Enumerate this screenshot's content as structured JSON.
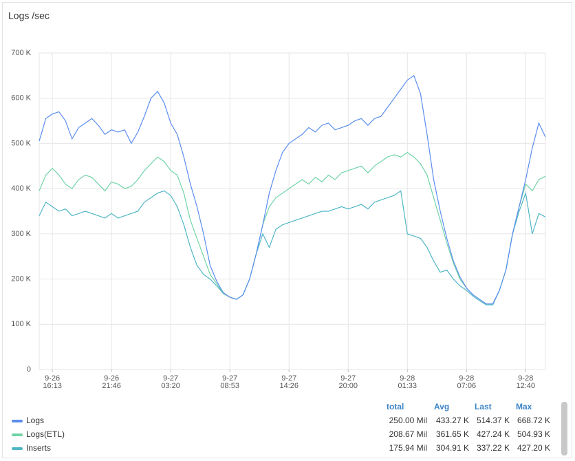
{
  "chart_data": {
    "type": "line",
    "title": "Logs /sec",
    "x": [
      "9-26 14:59",
      "9-26 15:36",
      "9-26 16:13",
      "9-26 16:50",
      "9-26 17:27",
      "9-26 18:04",
      "9-26 18:41",
      "9-26 19:18",
      "9-26 19:55",
      "9-26 20:32",
      "9-26 21:09",
      "9-26 21:46",
      "9-26 22:23",
      "9-26 23:00",
      "9-26 23:37",
      "9-27 00:14",
      "9-27 00:51",
      "9-27 01:28",
      "9-27 02:05",
      "9-27 02:42",
      "9-27 03:20",
      "9-27 03:57",
      "9-27 04:34",
      "9-27 05:11",
      "9-27 05:48",
      "9-27 06:25",
      "9-27 07:02",
      "9-27 07:39",
      "9-27 08:16",
      "9-27 08:53",
      "9-27 09:30",
      "9-27 10:07",
      "9-27 10:44",
      "9-27 11:21",
      "9-27 11:58",
      "9-27 12:35",
      "9-27 13:12",
      "9-27 13:49",
      "9-27 14:26",
      "9-27 15:03",
      "9-27 15:40",
      "9-27 16:17",
      "9-27 16:54",
      "9-27 17:31",
      "9-27 18:08",
      "9-27 18:45",
      "9-27 19:22",
      "9-27 20:00",
      "9-27 20:37",
      "9-27 21:14",
      "9-27 21:51",
      "9-27 22:28",
      "9-27 23:05",
      "9-27 23:42",
      "9-28 00:19",
      "9-28 00:56",
      "9-28 01:33",
      "9-28 02:10",
      "9-28 02:47",
      "9-28 03:24",
      "9-28 04:01",
      "9-28 04:38",
      "9-28 05:15",
      "9-28 05:52",
      "9-28 06:29",
      "9-28 07:06",
      "9-28 07:43",
      "9-28 08:20",
      "9-28 08:57",
      "9-28 09:34",
      "9-28 10:11",
      "9-28 10:48",
      "9-28 11:25",
      "9-28 12:02",
      "9-28 12:40",
      "9-28 13:17",
      "9-28 13:54",
      "9-28 14:31"
    ],
    "series": [
      {
        "name": "Logs",
        "color": "#5b8def",
        "values": [
          505000,
          555000,
          565000,
          570000,
          550000,
          510000,
          535000,
          545000,
          555000,
          540000,
          520000,
          530000,
          525000,
          530000,
          500000,
          525000,
          560000,
          600000,
          615000,
          590000,
          545000,
          520000,
          470000,
          410000,
          360000,
          300000,
          230000,
          195000,
          170000,
          160000,
          155000,
          165000,
          200000,
          255000,
          320000,
          390000,
          440000,
          480000,
          500000,
          510000,
          520000,
          535000,
          525000,
          540000,
          545000,
          530000,
          535000,
          540000,
          550000,
          555000,
          540000,
          555000,
          560000,
          580000,
          600000,
          620000,
          640000,
          650000,
          610000,
          520000,
          420000,
          350000,
          290000,
          240000,
          205000,
          180000,
          165000,
          155000,
          145000,
          145000,
          175000,
          220000,
          300000,
          360000,
          420000,
          490000,
          545000,
          514370
        ]
      },
      {
        "name": "Logs(ETL)",
        "color": "#6fd3a6",
        "values": [
          395000,
          430000,
          445000,
          430000,
          410000,
          400000,
          420000,
          430000,
          425000,
          410000,
          395000,
          415000,
          410000,
          400000,
          405000,
          420000,
          440000,
          455000,
          470000,
          460000,
          440000,
          430000,
          390000,
          330000,
          290000,
          250000,
          210000,
          190000,
          168000,
          160000,
          155000,
          165000,
          200000,
          255000,
          320000,
          360000,
          380000,
          390000,
          400000,
          410000,
          420000,
          410000,
          425000,
          415000,
          430000,
          420000,
          435000,
          440000,
          445000,
          450000,
          435000,
          450000,
          460000,
          470000,
          475000,
          470000,
          480000,
          470000,
          455000,
          430000,
          380000,
          330000,
          280000,
          235000,
          200000,
          180000,
          165000,
          155000,
          145000,
          145000,
          175000,
          220000,
          300000,
          360000,
          410000,
          395000,
          420000,
          427240
        ]
      },
      {
        "name": "Inserts",
        "color": "#4fb6c6",
        "values": [
          340000,
          370000,
          360000,
          350000,
          355000,
          340000,
          345000,
          350000,
          345000,
          340000,
          335000,
          345000,
          335000,
          340000,
          345000,
          350000,
          370000,
          380000,
          390000,
          395000,
          385000,
          360000,
          320000,
          270000,
          230000,
          210000,
          200000,
          185000,
          168000,
          160000,
          155000,
          165000,
          200000,
          255000,
          300000,
          270000,
          310000,
          320000,
          325000,
          330000,
          335000,
          340000,
          345000,
          350000,
          350000,
          355000,
          360000,
          355000,
          360000,
          365000,
          355000,
          370000,
          375000,
          380000,
          385000,
          395000,
          300000,
          295000,
          290000,
          270000,
          240000,
          215000,
          220000,
          200000,
          185000,
          175000,
          162000,
          152000,
          143000,
          143000,
          175000,
          220000,
          300000,
          350000,
          390000,
          300000,
          345000,
          337200
        ]
      }
    ],
    "ylim": [
      0,
      700000
    ],
    "yticks": [
      0,
      {
        "value": 100000,
        "label": "100 K"
      },
      {
        "value": 200000,
        "label": "200 K"
      },
      {
        "value": 300000,
        "label": "300 K"
      },
      {
        "value": 400000,
        "label": "400 K"
      },
      {
        "value": 500000,
        "label": "500 K"
      },
      {
        "value": 600000,
        "label": "600 K"
      },
      {
        "value": 700000,
        "label": "700 K"
      }
    ],
    "xticks": [
      "9-26 16:13",
      "9-26 21:46",
      "9-27 03:20",
      "9-27 08:53",
      "9-27 14:26",
      "9-27 20:00",
      "9-28 01:33",
      "9-28 07:06",
      "9-28 12:40"
    ],
    "grid": true,
    "legend_stats": {
      "columns": [
        "total",
        "Avg",
        "Last",
        "Max"
      ],
      "rows": [
        [
          "250.00 Mil",
          "433.27 K",
          "514.37 K",
          "668.72 K"
        ],
        [
          "208.67 Mil",
          "361.65 K",
          "427.24 K",
          "504.93 K"
        ],
        [
          "175.94 Mil",
          "304.91 K",
          "337.22 K",
          "427.20 K"
        ]
      ]
    }
  }
}
